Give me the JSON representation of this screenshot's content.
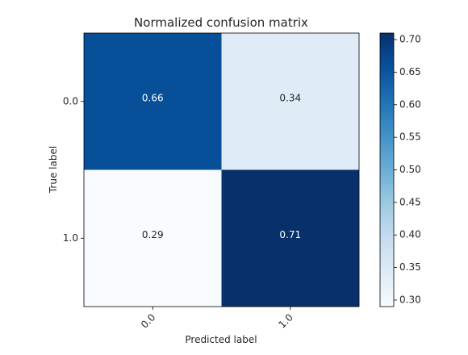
{
  "chart_data": {
    "type": "heatmap",
    "title": "Normalized confusion matrix",
    "xlabel": "Predicted label",
    "ylabel": "True label",
    "x_categories": [
      "0.0",
      "1.0"
    ],
    "y_categories": [
      "0.0",
      "1.0"
    ],
    "values": [
      [
        0.66,
        0.34
      ],
      [
        0.29,
        0.71
      ]
    ],
    "value_labels": [
      [
        "0.66",
        "0.34"
      ],
      [
        "0.29",
        "0.71"
      ]
    ],
    "colormap": "Blues",
    "color_range": [
      0.29,
      0.71
    ],
    "colorbar": {
      "ticks": [
        0.3,
        0.35,
        0.4,
        0.45,
        0.5,
        0.55,
        0.6,
        0.65,
        0.7
      ],
      "tick_labels": [
        "0.30",
        "0.35",
        "0.40",
        "0.45",
        "0.50",
        "0.55",
        "0.60",
        "0.65",
        "0.70"
      ]
    },
    "grid": false
  }
}
